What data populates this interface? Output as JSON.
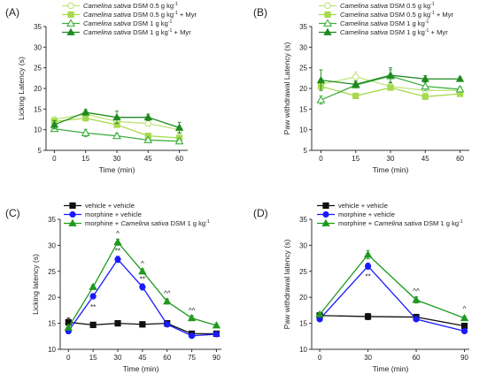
{
  "chart_data": [
    {
      "panel": "(A)",
      "type": "line",
      "ylabel": "Licking Latency (s)",
      "xlabel": "Time (min)",
      "x": [
        0,
        15,
        30,
        45,
        60
      ],
      "xticks": [
        0,
        15,
        30,
        45,
        60
      ],
      "ylim": [
        5,
        35
      ],
      "yticks": [
        5,
        10,
        15,
        20,
        25,
        30,
        35
      ],
      "xlim": [
        -4,
        64
      ],
      "legend": [
        {
          "italic": "Camelina sativa",
          "rest": " DSM 0.5 g kg",
          "sup": "-1",
          "tail": ""
        },
        {
          "italic": "Camelina sativa",
          "rest": " DSM 0.5 g kg",
          "sup": "-1",
          "tail": " + Myr"
        },
        {
          "italic": "Camelina sativa",
          "rest": " DSM 1 g kg",
          "sup": "-1",
          "tail": ""
        },
        {
          "italic": "Camelina sativa",
          "rest": " DSM 1 g kg",
          "sup": "-1",
          "tail": " + Myr"
        }
      ],
      "series": [
        {
          "values": [
            12.5,
            13.8,
            12.0,
            11.5,
            10.0
          ],
          "err": [
            0.6,
            0.8,
            0.7,
            0.6,
            1.0
          ],
          "color": "#bfe57a",
          "marker": "circle-open"
        },
        {
          "values": [
            12.0,
            12.8,
            11.2,
            8.5,
            8.0
          ],
          "err": [
            0.8,
            0.7,
            0.6,
            0.6,
            0.6
          ],
          "color": "#a6d94e",
          "marker": "square"
        },
        {
          "values": [
            10.2,
            9.2,
            8.5,
            7.5,
            7.2
          ],
          "err": [
            0.5,
            0.9,
            0.6,
            0.4,
            0.3
          ],
          "color": "#3fae3f",
          "marker": "triangle-open"
        },
        {
          "values": [
            11.2,
            14.2,
            13.0,
            13.0,
            10.5
          ],
          "err": [
            1.0,
            0.7,
            1.5,
            0.8,
            1.3
          ],
          "color": "#1f8a1f",
          "marker": "triangle"
        }
      ]
    },
    {
      "panel": "(B)",
      "type": "line",
      "ylabel": "Paw withdrawal Latency (s)",
      "xlabel": "Time (min)",
      "x": [
        0,
        15,
        30,
        45,
        60
      ],
      "xticks": [
        0,
        15,
        30,
        45,
        60
      ],
      "ylim": [
        5,
        35
      ],
      "yticks": [
        5,
        10,
        15,
        20,
        25,
        30,
        35
      ],
      "xlim": [
        -4,
        64
      ],
      "legend": [
        {
          "italic": "Camelina sativa",
          "rest": " DSM 0.5 g kg",
          "sup": "-1",
          "tail": ""
        },
        {
          "italic": "Camelina sativa",
          "rest": " DSM 0.5 g kg",
          "sup": "-1",
          "tail": " + Myr"
        },
        {
          "italic": "Camelina sativa",
          "rest": " DSM 1 g kg",
          "sup": "-1",
          "tail": ""
        },
        {
          "italic": "Camelina sativa",
          "rest": " DSM 1 g kg",
          "sup": "-1",
          "tail": " + Myr"
        }
      ],
      "series": [
        {
          "values": [
            21.0,
            22.8,
            20.5,
            19.5,
            19.5
          ],
          "err": [
            1.0,
            1.2,
            0.8,
            0.6,
            0.6
          ],
          "color": "#bfe57a",
          "marker": "circle-open"
        },
        {
          "values": [
            20.5,
            18.2,
            20.2,
            18.0,
            18.7
          ],
          "err": [
            0.7,
            0.4,
            0.5,
            0.6,
            0.5
          ],
          "color": "#a6d94e",
          "marker": "square"
        },
        {
          "values": [
            17.2,
            20.8,
            23.0,
            20.5,
            19.8
          ],
          "err": [
            1.0,
            0.6,
            1.5,
            1.0,
            0.6
          ],
          "color": "#3fae3f",
          "marker": "triangle-open"
        },
        {
          "values": [
            22.0,
            21.0,
            23.2,
            22.3,
            22.3
          ],
          "err": [
            2.5,
            0.8,
            1.8,
            0.8,
            0.5
          ],
          "color": "#1f8a1f",
          "marker": "triangle"
        }
      ]
    },
    {
      "panel": "(C)",
      "type": "line",
      "ylabel": "Licking latency (s)",
      "xlabel": "Time (min)",
      "x": [
        0,
        15,
        30,
        45,
        60,
        75,
        90
      ],
      "xticks": [
        0,
        15,
        30,
        45,
        60,
        75,
        90
      ],
      "ylim": [
        10,
        35
      ],
      "yticks": [
        10,
        15,
        20,
        25,
        30,
        35
      ],
      "xlim": [
        -5,
        93
      ],
      "legend": [
        {
          "italic": "",
          "rest": "vehicle + vehicle",
          "sup": "",
          "tail": ""
        },
        {
          "italic": "",
          "rest": "morphine + vehicle",
          "sup": "",
          "tail": ""
        },
        {
          "pre": "morphine + ",
          "italic": "Camelina sativa",
          "rest": " DSM 1 g kg",
          "sup": "-1",
          "tail": ""
        }
      ],
      "series": [
        {
          "values": [
            15.2,
            14.7,
            15.0,
            14.8,
            15.0,
            13.0,
            13.0
          ],
          "err": [
            0.8,
            0.5,
            0.4,
            0.5,
            0.3,
            0.4,
            0.3
          ],
          "color": "#111111",
          "marker": "square"
        },
        {
          "values": [
            13.5,
            20.2,
            27.3,
            22.0,
            14.8,
            12.6,
            12.9
          ],
          "err": [
            0.5,
            0.5,
            0.6,
            0.6,
            0.4,
            0.4,
            0.4
          ],
          "color": "#1a1aff",
          "marker": "circle"
        },
        {
          "values": [
            14.2,
            22.0,
            30.6,
            25.0,
            19.2,
            16.0,
            14.6
          ],
          "err": [
            0.4,
            0.4,
            0.6,
            0.5,
            0.5,
            0.5,
            0.3
          ],
          "color": "#1f9a1f",
          "marker": "triangle"
        }
      ],
      "annotations": [
        {
          "x": 30,
          "y": 32.3,
          "text": "^"
        },
        {
          "x": 30,
          "y": 29.0,
          "text": "**"
        },
        {
          "x": 45,
          "y": 26.5,
          "text": "^"
        },
        {
          "x": 45,
          "y": 23.5,
          "text": "**"
        },
        {
          "x": 60,
          "y": 20.8,
          "text": "^^"
        },
        {
          "x": 75,
          "y": 17.5,
          "text": "^^"
        },
        {
          "x": 15,
          "y": 18.2,
          "text": "**"
        }
      ]
    },
    {
      "panel": "(D)",
      "type": "line",
      "ylabel": "Paw withdrawal latency (s)",
      "xlabel": "Time (min)",
      "x": [
        0,
        30,
        60,
        90
      ],
      "xticks": [
        0,
        30,
        60,
        90
      ],
      "ylim": [
        10,
        35
      ],
      "yticks": [
        10,
        15,
        20,
        25,
        30,
        35
      ],
      "xlim": [
        -5,
        93
      ],
      "legend": [
        {
          "italic": "",
          "rest": "vehicle + vehicle",
          "sup": "",
          "tail": ""
        },
        {
          "italic": "",
          "rest": "morphine + vehicle",
          "sup": "",
          "tail": ""
        },
        {
          "pre": "morphine + ",
          "italic": "Camelina sativa",
          "rest": " DSM 1 g kg",
          "sup": "-1",
          "tail": ""
        }
      ],
      "series": [
        {
          "values": [
            16.5,
            16.3,
            16.2,
            14.5
          ],
          "err": [
            0.5,
            0.6,
            0.4,
            0.5
          ],
          "color": "#111111",
          "marker": "square"
        },
        {
          "values": [
            15.8,
            26.0,
            15.8,
            13.5
          ],
          "err": [
            0.4,
            0.6,
            0.4,
            0.4
          ],
          "color": "#1a1aff",
          "marker": "circle"
        },
        {
          "values": [
            16.7,
            28.2,
            19.5,
            16.0
          ],
          "err": [
            0.4,
            0.8,
            0.6,
            0.4
          ],
          "color": "#1f9a1f",
          "marker": "triangle"
        }
      ],
      "annotations": [
        {
          "x": 30,
          "y": 24.0,
          "text": "**"
        },
        {
          "x": 60,
          "y": 21.2,
          "text": "^^"
        },
        {
          "x": 90,
          "y": 17.8,
          "text": "^"
        }
      ]
    }
  ]
}
